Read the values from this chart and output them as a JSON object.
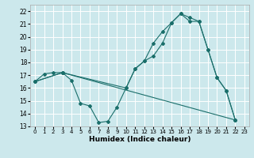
{
  "xlabel": "Humidex (Indice chaleur)",
  "background_color": "#cce8ec",
  "grid_color": "#b0d8dc",
  "line_color": "#1a6e6a",
  "xlim": [
    -0.5,
    23.5
  ],
  "ylim": [
    13,
    22.5
  ],
  "xticks": [
    0,
    1,
    2,
    3,
    4,
    5,
    6,
    7,
    8,
    9,
    10,
    11,
    12,
    13,
    14,
    15,
    16,
    17,
    18,
    19,
    20,
    21,
    22,
    23
  ],
  "yticks": [
    13,
    14,
    15,
    16,
    17,
    18,
    19,
    20,
    21,
    22
  ],
  "series1_x": [
    0,
    1,
    2,
    3,
    4,
    5,
    6,
    7,
    8,
    9,
    10,
    11,
    12,
    13,
    14,
    15,
    16,
    17,
    18,
    19,
    20,
    21,
    22
  ],
  "series1_y": [
    16.5,
    17.1,
    17.2,
    17.2,
    16.6,
    14.8,
    14.6,
    13.3,
    13.4,
    14.5,
    16.0,
    17.5,
    18.1,
    19.5,
    20.4,
    21.1,
    21.8,
    21.5,
    21.2,
    19.0,
    16.8,
    15.8,
    13.5
  ],
  "series2_x": [
    0,
    3,
    10,
    11,
    12,
    13,
    14,
    15,
    16,
    17,
    18,
    19,
    20,
    21,
    22
  ],
  "series2_y": [
    16.5,
    17.2,
    16.0,
    17.5,
    18.1,
    18.5,
    19.5,
    21.1,
    21.8,
    21.2,
    21.2,
    19.0,
    16.8,
    15.8,
    13.5
  ],
  "series3_x": [
    0,
    3,
    22
  ],
  "series3_y": [
    16.5,
    17.2,
    13.5
  ]
}
